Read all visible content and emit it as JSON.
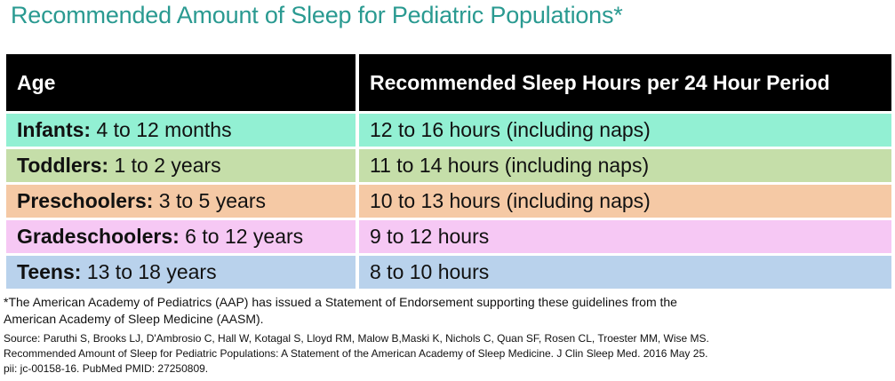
{
  "title": "Recommended Amount of Sleep for Pediatric Populations*",
  "table": {
    "headers": [
      "Age",
      "Recommended Sleep Hours per 24 Hour Period"
    ],
    "rows": [
      {
        "group": "Infants:",
        "range": " 4 to 12 months",
        "hours": "12 to 16 hours (including naps)",
        "color": "#92f0d3"
      },
      {
        "group": "Toddlers:",
        "range": " 1 to 2 years",
        "hours": "11 to 14 hours (including naps)",
        "color": "#c5dea9"
      },
      {
        "group": "Preschoolers:",
        "range": " 3 to 5 years",
        "hours": "10 to 13 hours (including naps)",
        "color": "#f5c9a5"
      },
      {
        "group": "Gradeschoolers:",
        "range": " 6 to 12 years",
        "hours": "9 to 12 hours",
        "color": "#f6c8f4"
      },
      {
        "group": "Teens:",
        "range": " 13 to 18 years",
        "hours": "8 to 10 hours",
        "color": "#b9d2ec"
      }
    ]
  },
  "footnote": {
    "line1": "*The American Academy of Pediatrics (AAP) has issued a Statement of Endorsement supporting these guidelines from the",
    "line2": "American Academy of Sleep Medicine (AASM)."
  },
  "source": {
    "line1": "Source: Paruthi S, Brooks LJ, D'Ambrosio C, Hall W, Kotagal S, Lloyd RM, Malow B,Maski K, Nichols C, Quan SF, Rosen CL, Troester MM, Wise MS.",
    "line2": "Recommended Amount of Sleep for Pediatric Populations: A Statement of the American Academy of Sleep Medicine.  J Clin Sleep Med. 2016 May 25.",
    "line3": "pii: jc-00158-16. PubMed PMID: 27250809."
  }
}
